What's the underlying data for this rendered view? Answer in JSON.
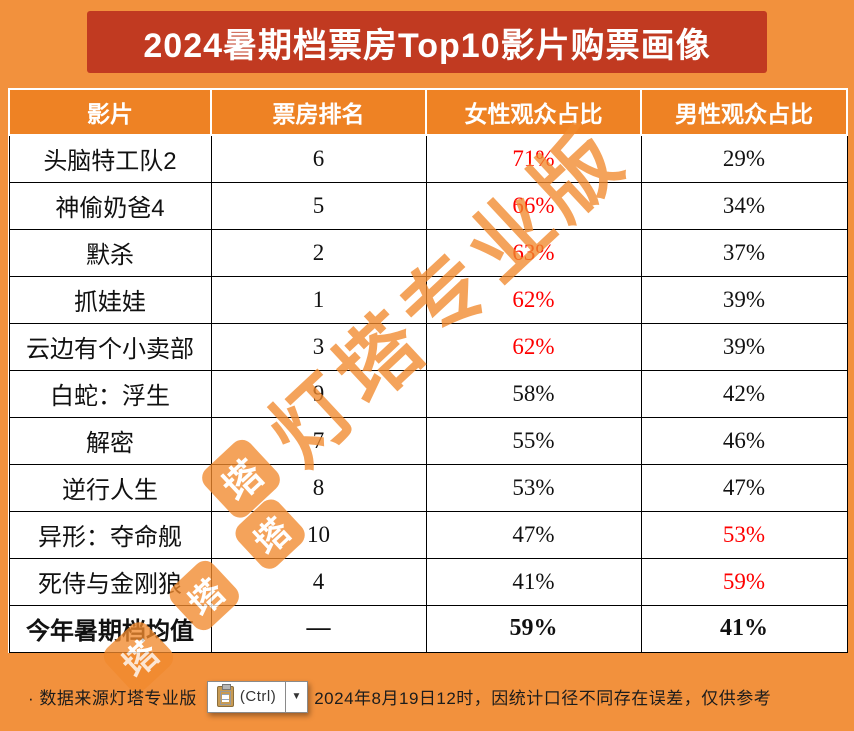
{
  "title": "2024暑期档票房Top10影片购票画像",
  "table": {
    "headers": [
      "影片",
      "票房排名",
      "女性观众占比",
      "男性观众占比"
    ],
    "rows": [
      {
        "film": "头脑特工队2",
        "rank": "6",
        "female": "71%",
        "male": "29%",
        "female_red": true,
        "male_red": false,
        "bold": false
      },
      {
        "film": "神偷奶爸4",
        "rank": "5",
        "female": "66%",
        "male": "34%",
        "female_red": true,
        "male_red": false,
        "bold": false
      },
      {
        "film": "默杀",
        "rank": "2",
        "female": "63%",
        "male": "37%",
        "female_red": true,
        "male_red": false,
        "bold": false
      },
      {
        "film": "抓娃娃",
        "rank": "1",
        "female": "62%",
        "male": "39%",
        "female_red": true,
        "male_red": false,
        "bold": false
      },
      {
        "film": "云边有个小卖部",
        "rank": "3",
        "female": "62%",
        "male": "39%",
        "female_red": true,
        "male_red": false,
        "bold": false
      },
      {
        "film": "白蛇：浮生",
        "rank": "9",
        "female": "58%",
        "male": "42%",
        "female_red": false,
        "male_red": false,
        "bold": false
      },
      {
        "film": "解密",
        "rank": "7",
        "female": "55%",
        "male": "46%",
        "female_red": false,
        "male_red": false,
        "bold": false
      },
      {
        "film": "逆行人生",
        "rank": "8",
        "female": "53%",
        "male": "47%",
        "female_red": false,
        "male_red": false,
        "bold": false
      },
      {
        "film": "异形：夺命舰",
        "rank": "10",
        "female": "47%",
        "male": "53%",
        "female_red": false,
        "male_red": true,
        "bold": false
      },
      {
        "film": "死侍与金刚狼",
        "rank": "4",
        "female": "41%",
        "male": "59%",
        "female_red": false,
        "male_red": true,
        "bold": false
      },
      {
        "film": "今年暑期档均值",
        "rank": "—",
        "female": "59%",
        "male": "41%",
        "female_red": false,
        "male_red": false,
        "bold": true
      }
    ]
  },
  "watermark": {
    "text": "灯塔专业版",
    "logo_glyph": "塔"
  },
  "footer": {
    "left": "· 数据来源灯塔专业版",
    "right": "2024年8月19日12时，因统计口径不同存在误差，仅供参考",
    "paste_label": "(Ctrl)",
    "dropdown_glyph": "▼"
  },
  "colors": {
    "background": "#F2913D",
    "title_bg": "#C13A21",
    "header_bg": "#EE8224",
    "highlight_red": "#FE0000",
    "watermark_orange": "#F18A2E"
  },
  "chart_data": {
    "type": "table",
    "title": "2024暑期档票房Top10影片购票画像",
    "columns": [
      "影片",
      "票房排名",
      "女性观众占比",
      "男性观众占比"
    ],
    "rows": [
      [
        "头脑特工队2",
        6,
        "71%",
        "29%"
      ],
      [
        "神偷奶爸4",
        5,
        "66%",
        "34%"
      ],
      [
        "默杀",
        2,
        "63%",
        "37%"
      ],
      [
        "抓娃娃",
        1,
        "62%",
        "39%"
      ],
      [
        "云边有个小卖部",
        3,
        "62%",
        "39%"
      ],
      [
        "白蛇：浮生",
        9,
        "58%",
        "42%"
      ],
      [
        "解密",
        7,
        "55%",
        "46%"
      ],
      [
        "逆行人生",
        8,
        "53%",
        "47%"
      ],
      [
        "异形：夺命舰",
        10,
        "47%",
        "53%"
      ],
      [
        "死侍与金刚狼",
        4,
        "41%",
        "59%"
      ],
      [
        "今年暑期档均值",
        "—",
        "59%",
        "41%"
      ]
    ],
    "highlight": "female share >= 62% shown in red; male share >= 53% shown in red",
    "note_visible": "· 数据来源灯塔专业版 … 2024年8月19日12时，因统计口径不同存在误差，仅供参考"
  }
}
